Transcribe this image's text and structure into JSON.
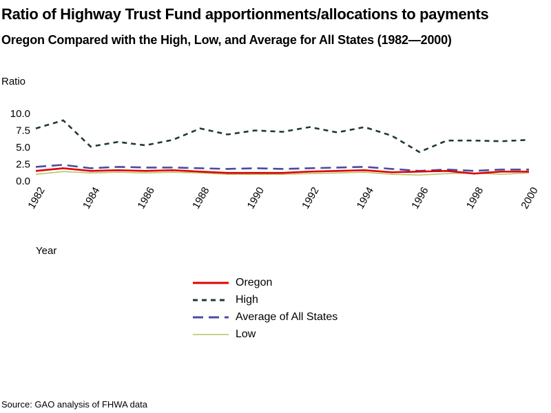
{
  "title": "Ratio of Highway Trust Fund apportionments/allocations to payments",
  "subtitle": "Oregon Compared with the High, Low, and Average for All States (1982—2000)",
  "source": "Source: GAO analysis of FHWA data",
  "chart_data": {
    "type": "line",
    "title": "Ratio of Highway Trust Fund apportionments/allocations to payments",
    "subtitle": "Oregon Compared with the High, Low, and Average for All States (1982—2000)",
    "xlabel": "Year",
    "ylabel": "Ratio",
    "x": [
      1982,
      1983,
      1984,
      1985,
      1986,
      1987,
      1988,
      1989,
      1990,
      1991,
      1992,
      1993,
      1994,
      1995,
      1996,
      1997,
      1998,
      1999,
      2000
    ],
    "xticks": [
      "1982",
      "1984",
      "1986",
      "1988",
      "1990",
      "1992",
      "1994",
      "1996",
      "1998",
      "2000"
    ],
    "yticks": [
      "0.0",
      "2.5",
      "5.0",
      "7.5",
      "10.0"
    ],
    "ylim": [
      0,
      10
    ],
    "grid": false,
    "legend_position": "bottom-center",
    "series": [
      {
        "name": "Oregon",
        "color": "#e00000",
        "dash": "solid",
        "values": [
          1.5,
          1.9,
          1.5,
          1.6,
          1.5,
          1.6,
          1.4,
          1.2,
          1.2,
          1.2,
          1.4,
          1.5,
          1.6,
          1.3,
          1.4,
          1.5,
          1.1,
          1.4,
          1.4
        ]
      },
      {
        "name": "High",
        "color": "#1e3a2e",
        "dash": "short",
        "values": [
          7.8,
          9.0,
          5.1,
          5.8,
          5.3,
          6.1,
          7.8,
          6.9,
          7.5,
          7.3,
          8.0,
          7.2,
          8.0,
          6.7,
          4.3,
          6.0,
          6.0,
          5.9,
          6.1
        ]
      },
      {
        "name": "Average of All States",
        "color": "#4a4aa0",
        "dash": "long",
        "values": [
          2.1,
          2.4,
          1.9,
          2.1,
          2.0,
          2.0,
          1.9,
          1.8,
          1.9,
          1.8,
          1.9,
          2.0,
          2.1,
          1.8,
          1.5,
          1.7,
          1.5,
          1.7,
          1.7
        ]
      },
      {
        "name": "Low",
        "color": "#b5c060",
        "dash": "solid",
        "values": [
          1.0,
          1.4,
          1.2,
          1.3,
          1.2,
          1.3,
          1.2,
          1.0,
          1.0,
          1.0,
          1.1,
          1.2,
          1.3,
          1.0,
          0.9,
          1.1,
          1.2,
          1.0,
          1.2
        ]
      }
    ]
  }
}
